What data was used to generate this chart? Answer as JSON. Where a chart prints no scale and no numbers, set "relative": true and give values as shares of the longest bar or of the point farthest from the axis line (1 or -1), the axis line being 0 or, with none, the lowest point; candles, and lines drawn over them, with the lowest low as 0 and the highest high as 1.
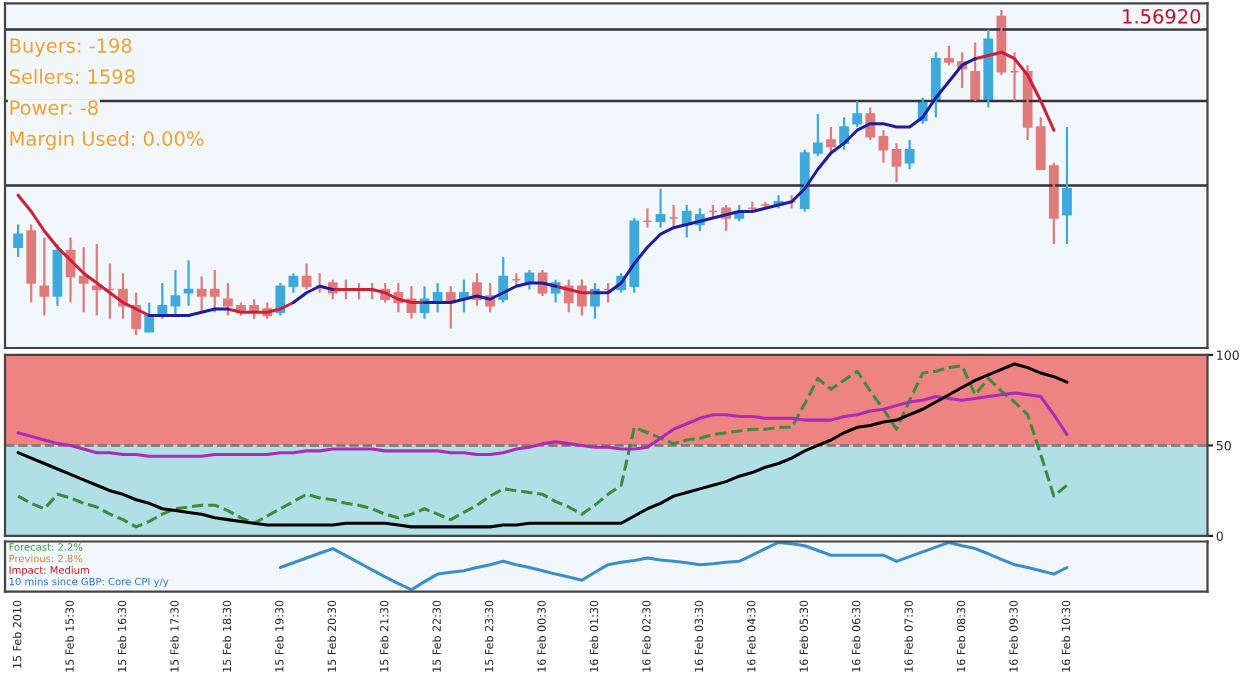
{
  "chart_data": [
    {
      "type": "candlestick",
      "relative": true,
      "tick_labels": false,
      "categories": [
        null,
        null,
        null,
        null,
        null,
        null,
        null,
        null,
        null,
        null,
        null,
        null,
        null,
        null,
        null,
        null,
        null,
        null,
        null,
        null,
        null,
        null,
        null,
        null,
        null,
        null,
        null,
        null,
        null,
        null,
        null,
        null,
        null,
        null,
        null,
        null,
        null,
        null,
        null,
        null,
        null,
        null,
        null,
        null,
        null,
        null,
        null,
        null,
        null,
        null,
        null,
        null,
        null,
        null,
        null,
        null,
        null,
        null,
        null,
        null,
        null,
        null,
        null,
        null,
        null,
        null,
        null,
        null,
        null,
        null,
        null,
        null,
        null,
        null,
        null,
        null,
        null,
        null,
        null,
        null,
        null
      ],
      "ohlc": [
        [
          0.27,
          0.34,
          0.24,
          0.31
        ],
        [
          0.32,
          0.34,
          0.1,
          0.16
        ],
        [
          0.15,
          0.3,
          0.06,
          0.12
        ],
        [
          0.12,
          0.28,
          0.09,
          0.26
        ],
        [
          0.26,
          0.3,
          0.1,
          0.18
        ],
        [
          0.18,
          0.27,
          0.07,
          0.16
        ],
        [
          0.15,
          0.28,
          0.06,
          0.14
        ],
        [
          0.14,
          0.22,
          0.05,
          0.14
        ],
        [
          0.14,
          0.19,
          0.05,
          0.09
        ],
        [
          0.09,
          0.13,
          0.0,
          0.02
        ],
        [
          0.01,
          0.1,
          0.01,
          0.06
        ],
        [
          0.06,
          0.16,
          0.05,
          0.09
        ],
        [
          0.09,
          0.2,
          0.06,
          0.12
        ],
        [
          0.13,
          0.23,
          0.09,
          0.14
        ],
        [
          0.14,
          0.18,
          0.07,
          0.12
        ],
        [
          0.14,
          0.2,
          0.07,
          0.12
        ],
        [
          0.11,
          0.16,
          0.06,
          0.09
        ],
        [
          0.09,
          0.1,
          0.06,
          0.07
        ],
        [
          0.09,
          0.11,
          0.05,
          0.07
        ],
        [
          0.08,
          0.1,
          0.05,
          0.06
        ],
        [
          0.07,
          0.16,
          0.06,
          0.15
        ],
        [
          0.15,
          0.19,
          0.13,
          0.18
        ],
        [
          0.18,
          0.22,
          0.14,
          0.15
        ],
        [
          0.15,
          0.19,
          0.13,
          0.15
        ],
        [
          0.16,
          0.17,
          0.11,
          0.13
        ],
        [
          0.14,
          0.17,
          0.11,
          0.14
        ],
        [
          0.14,
          0.16,
          0.11,
          0.14
        ],
        [
          0.14,
          0.16,
          0.11,
          0.14
        ],
        [
          0.14,
          0.16,
          0.1,
          0.11
        ],
        [
          0.13,
          0.16,
          0.07,
          0.1
        ],
        [
          0.11,
          0.15,
          0.05,
          0.07
        ],
        [
          0.07,
          0.15,
          0.05,
          0.11
        ],
        [
          0.1,
          0.16,
          0.07,
          0.13
        ],
        [
          0.13,
          0.15,
          0.02,
          0.1
        ],
        [
          0.11,
          0.17,
          0.07,
          0.13
        ],
        [
          0.16,
          0.19,
          0.09,
          0.11
        ],
        [
          0.12,
          0.16,
          0.07,
          0.09
        ],
        [
          0.11,
          0.24,
          0.1,
          0.18
        ],
        [
          0.17,
          0.19,
          0.15,
          0.17
        ],
        [
          0.16,
          0.2,
          0.14,
          0.19
        ],
        [
          0.19,
          0.2,
          0.12,
          0.13
        ],
        [
          0.13,
          0.17,
          0.1,
          0.16
        ],
        [
          0.15,
          0.17,
          0.07,
          0.1
        ],
        [
          0.15,
          0.17,
          0.06,
          0.09
        ],
        [
          0.09,
          0.16,
          0.05,
          0.14
        ],
        [
          0.14,
          0.16,
          0.1,
          0.14
        ],
        [
          0.14,
          0.19,
          0.13,
          0.18
        ],
        [
          0.15,
          0.36,
          0.13,
          0.35
        ],
        [
          0.35,
          0.39,
          0.33,
          0.35
        ],
        [
          0.35,
          0.45,
          0.33,
          0.37
        ],
        [
          0.36,
          0.4,
          0.33,
          0.36
        ],
        [
          0.34,
          0.4,
          0.3,
          0.38
        ],
        [
          0.34,
          0.39,
          0.32,
          0.37
        ],
        [
          0.38,
          0.4,
          0.36,
          0.38
        ],
        [
          0.39,
          0.4,
          0.32,
          0.36
        ],
        [
          0.36,
          0.4,
          0.35,
          0.38
        ],
        [
          0.39,
          0.41,
          0.38,
          0.39
        ],
        [
          0.4,
          0.41,
          0.39,
          0.4
        ],
        [
          0.4,
          0.43,
          0.39,
          0.41
        ],
        [
          0.41,
          0.43,
          0.39,
          0.41
        ],
        [
          0.39,
          0.57,
          0.38,
          0.56
        ],
        [
          0.56,
          0.68,
          0.55,
          0.59
        ],
        [
          0.6,
          0.64,
          0.56,
          0.58
        ],
        [
          0.59,
          0.67,
          0.57,
          0.64
        ],
        [
          0.65,
          0.72,
          0.64,
          0.68
        ],
        [
          0.68,
          0.7,
          0.6,
          0.61
        ],
        [
          0.61,
          0.63,
          0.53,
          0.57
        ],
        [
          0.57,
          0.59,
          0.47,
          0.52
        ],
        [
          0.53,
          0.6,
          0.51,
          0.57
        ],
        [
          0.66,
          0.73,
          0.65,
          0.72
        ],
        [
          0.72,
          0.87,
          0.67,
          0.85
        ],
        [
          0.85,
          0.89,
          0.83,
          0.84
        ],
        [
          0.84,
          0.87,
          0.76,
          0.82
        ],
        [
          0.81,
          0.9,
          0.72,
          0.72
        ],
        [
          0.72,
          0.94,
          0.7,
          0.91
        ],
        [
          0.98,
          1.0,
          0.8,
          0.81
        ],
        [
          0.81,
          0.87,
          0.72,
          0.81
        ],
        [
          0.81,
          0.83,
          0.6,
          0.64
        ],
        [
          0.64,
          0.67,
          0.51,
          0.51
        ],
        [
          0.52,
          0.53,
          0.28,
          0.36
        ],
        [
          0.37,
          0.64,
          0.28,
          0.45
        ]
      ],
      "colors": [
        "#3fa9dc",
        "#e07b7b",
        "#e07b7b",
        "#3fa9dc",
        "#e07b7b",
        "#e07b7b",
        "#e07b7b",
        "#e07b7b",
        "#e07b7b",
        "#e07b7b",
        "#3fa9dc",
        "#3fa9dc",
        "#3fa9dc",
        "#3fa9dc",
        "#e07b7b",
        "#e07b7b",
        "#e07b7b",
        "#e07b7b",
        "#e07b7b",
        "#e07b7b",
        "#3fa9dc",
        "#3fa9dc",
        "#e07b7b",
        "#e07b7b",
        "#e07b7b",
        "#e07b7b",
        "#e07b7b",
        "#e07b7b",
        "#e07b7b",
        "#e07b7b",
        "#e07b7b",
        "#3fa9dc",
        "#3fa9dc",
        "#e07b7b",
        "#3fa9dc",
        "#e07b7b",
        "#e07b7b",
        "#3fa9dc",
        "#e07b7b",
        "#3fa9dc",
        "#e07b7b",
        "#3fa9dc",
        "#e07b7b",
        "#e07b7b",
        "#3fa9dc",
        "#e07b7b",
        "#3fa9dc",
        "#3fa9dc",
        "#e07b7b",
        "#3fa9dc",
        "#e07b7b",
        "#3fa9dc",
        "#3fa9dc",
        "#e07b7b",
        "#e07b7b",
        "#3fa9dc",
        "#e07b7b",
        "#e07b7b",
        "#3fa9dc",
        "#e07b7b",
        "#3fa9dc",
        "#3fa9dc",
        "#e07b7b",
        "#3fa9dc",
        "#3fa9dc",
        "#e07b7b",
        "#e07b7b",
        "#e07b7b",
        "#3fa9dc",
        "#3fa9dc",
        "#3fa9dc",
        "#e07b7b",
        "#e07b7b",
        "#e07b7b",
        "#3fa9dc",
        "#e07b7b",
        "#e07b7b",
        "#e07b7b",
        "#e07b7b",
        "#e07b7b",
        "#3fa9dc"
      ],
      "series": [
        {
          "type": "line",
          "color": "#cc1f3a",
          "values": [
            0.43,
            0.38,
            0.32,
            0.27,
            0.23,
            0.19,
            0.16,
            0.13,
            0.1,
            0.08,
            0.06,
            null,
            null,
            null,
            null,
            null,
            0.08,
            0.07,
            0.07,
            0.07,
            0.08,
            0.1,
            null,
            null,
            0.14,
            0.14,
            0.14,
            0.14,
            0.13,
            0.11,
            0.1,
            0.1,
            null,
            null,
            null,
            null,
            null,
            null,
            null,
            null,
            null,
            0.15,
            0.14,
            0.13,
            0.13,
            null,
            null,
            null,
            null,
            null,
            null,
            null,
            null,
            null,
            null,
            null,
            null,
            null,
            null,
            null,
            null,
            null,
            null,
            null,
            null,
            null,
            null,
            null,
            null,
            null,
            null,
            null,
            null,
            0.85,
            0.86,
            0.87,
            0.85,
            0.8,
            0.72,
            0.63,
            null
          ]
        },
        {
          "type": "line",
          "color": "#1f1f9e",
          "values": [
            null,
            null,
            null,
            null,
            null,
            null,
            null,
            null,
            null,
            null,
            0.06,
            0.06,
            0.06,
            0.06,
            0.07,
            0.08,
            0.08,
            null,
            null,
            null,
            null,
            0.1,
            0.13,
            0.15,
            0.14,
            null,
            null,
            null,
            null,
            null,
            null,
            0.1,
            0.1,
            0.1,
            0.11,
            0.12,
            0.11,
            0.13,
            0.15,
            0.16,
            0.16,
            0.15,
            null,
            null,
            0.13,
            0.13,
            0.16,
            0.22,
            0.27,
            0.31,
            0.33,
            0.34,
            0.35,
            0.36,
            0.37,
            0.38,
            0.38,
            0.39,
            0.4,
            0.41,
            0.45,
            0.51,
            0.56,
            0.59,
            0.63,
            0.65,
            0.65,
            0.64,
            0.64,
            0.67,
            0.73,
            0.78,
            0.83,
            0.85,
            null,
            null,
            null,
            null,
            null,
            null,
            null
          ]
        }
      ],
      "ref_lines": [
        {
          "axis": "y",
          "value": 0.94,
          "color": "#333333"
        },
        {
          "axis": "y",
          "value": 0.72,
          "color": "#333333"
        },
        {
          "axis": "y",
          "value": 0.46,
          "color": "#333333"
        }
      ],
      "annotations": [
        "Buyers: -198",
        "Sellers: 1598",
        "Power: -8",
        "Margin Used: 0.00%",
        "1.56920"
      ]
    },
    {
      "type": "line",
      "tick_labels": "y",
      "ylim": [
        0,
        100
      ],
      "yticks": [
        0,
        50,
        100
      ],
      "categories": [
        null,
        null,
        null,
        null,
        null,
        null,
        null,
        null,
        null,
        null,
        null,
        null,
        null,
        null,
        null,
        null,
        null,
        null,
        null,
        null,
        null,
        null,
        null,
        null,
        null,
        null,
        null,
        null,
        null,
        null,
        null,
        null,
        null,
        null,
        null,
        null,
        null,
        null,
        null,
        null,
        null,
        null,
        null,
        null,
        null,
        null,
        null,
        null,
        null,
        null,
        null,
        null,
        null,
        null,
        null,
        null,
        null,
        null,
        null,
        null,
        null,
        null,
        null,
        null,
        null,
        null,
        null,
        null,
        null,
        null,
        null,
        null,
        null,
        null,
        null,
        null,
        null,
        null,
        null,
        null,
        null
      ],
      "bands": [
        {
          "axis": "y",
          "from": 50,
          "to": 100,
          "color": "#ee8482"
        },
        {
          "axis": "y",
          "from": 0,
          "to": 50,
          "color": "#b0e0e6"
        }
      ],
      "ref_lines": [
        {
          "axis": "y",
          "value": 50,
          "color": "#777777",
          "line_style": "dashed"
        }
      ],
      "series": [
        {
          "color": "#3c8c3c",
          "line_style": "dashed",
          "values": [
            22,
            18,
            15,
            23,
            21,
            18,
            16,
            12,
            9,
            5,
            8,
            12,
            15,
            16,
            17,
            17,
            14,
            10,
            7,
            11,
            15,
            19,
            23,
            21,
            20,
            18,
            17,
            15,
            12,
            10,
            12,
            15,
            12,
            9,
            13,
            17,
            22,
            26,
            25,
            24,
            23,
            19,
            16,
            12,
            17,
            23,
            28,
            60,
            57,
            54,
            51,
            53,
            54,
            56,
            57,
            58,
            59,
            59,
            60,
            60,
            73,
            87,
            81,
            86,
            91,
            80,
            70,
            59,
            75,
            90,
            91,
            93,
            94,
            78,
            87,
            80,
            74,
            67,
            45,
            22,
            28
          ]
        },
        {
          "color": "#b02ab8",
          "values": [
            57,
            55,
            53,
            51,
            50,
            48,
            46,
            46,
            45,
            45,
            44,
            44,
            44,
            44,
            44,
            45,
            45,
            45,
            45,
            45,
            46,
            46,
            47,
            47,
            48,
            48,
            48,
            48,
            47,
            47,
            47,
            47,
            47,
            46,
            46,
            45,
            45,
            46,
            48,
            49,
            51,
            52,
            51,
            50,
            49,
            49,
            48,
            48,
            49,
            54,
            59,
            62,
            65,
            67,
            67,
            66,
            66,
            65,
            65,
            65,
            64,
            64,
            64,
            66,
            67,
            69,
            70,
            72,
            74,
            75,
            77,
            76,
            75,
            76,
            77,
            78,
            79,
            78,
            77,
            67,
            56
          ]
        },
        {
          "color": "#000000",
          "values": [
            46,
            43,
            40,
            37,
            34,
            31,
            28,
            25,
            23,
            20,
            18,
            15,
            14,
            13,
            12,
            10,
            9,
            8,
            7,
            6,
            6,
            6,
            6,
            6,
            6,
            7,
            7,
            7,
            7,
            6,
            5,
            5,
            5,
            5,
            5,
            5,
            5,
            6,
            6,
            7,
            7,
            7,
            7,
            7,
            7,
            7,
            7,
            11,
            15,
            18,
            22,
            24,
            26,
            28,
            30,
            33,
            35,
            38,
            40,
            43,
            47,
            50,
            53,
            57,
            60,
            61,
            63,
            64,
            67,
            70,
            74,
            78,
            82,
            86,
            89,
            92,
            95,
            93,
            90,
            88,
            85
          ]
        }
      ]
    },
    {
      "type": "line",
      "relative": true,
      "tick_labels": "x",
      "categories": [
        "15 Feb 2010",
        null,
        null,
        null,
        "15 Feb 15:30",
        null,
        null,
        null,
        "15 Feb 16:30",
        null,
        null,
        null,
        "15 Feb 17:30",
        null,
        null,
        null,
        "15 Feb 18:30",
        null,
        null,
        null,
        "15 Feb 19:30",
        null,
        null,
        null,
        "15 Feb 20:30",
        null,
        null,
        null,
        "15 Feb 21:30",
        null,
        null,
        null,
        "15 Feb 22:30",
        null,
        null,
        null,
        "15 Feb 23:30",
        null,
        null,
        null,
        "16 Feb 00:30",
        null,
        null,
        null,
        "16 Feb 01:30",
        null,
        null,
        null,
        "16 Feb 02:30",
        null,
        null,
        null,
        "16 Feb 03:30",
        null,
        null,
        null,
        "16 Feb 04:30",
        null,
        null,
        null,
        "16 Feb 05:30",
        null,
        null,
        null,
        "16 Feb 06:30",
        null,
        null,
        null,
        "16 Feb 07:30",
        null,
        null,
        null,
        "16 Feb 08:30",
        null,
        null,
        null,
        "16 Feb 09:30",
        null,
        null,
        null,
        "16 Feb 10:30"
      ],
      "series": [
        {
          "color": "#3b8fc8",
          "values": [
            null,
            null,
            null,
            null,
            null,
            null,
            null,
            null,
            null,
            null,
            null,
            null,
            null,
            null,
            null,
            null,
            null,
            null,
            null,
            null,
            0.47,
            0.57,
            0.67,
            0.77,
            0.87,
            0.72,
            0.57,
            0.42,
            0.27,
            0.13,
            0,
            0.17,
            0.33,
            0.37,
            0.4,
            0.47,
            0.53,
            0.6,
            0.53,
            0.47,
            0.4,
            0.33,
            0.27,
            0.2,
            0.37,
            0.53,
            0.58,
            0.62,
            0.67,
            0.63,
            0.6,
            0.57,
            0.53,
            0.55,
            0.58,
            0.6,
            0.73,
            0.87,
            1,
            0.97,
            0.93,
            0.83,
            0.73,
            0.73,
            0.73,
            0.73,
            0.73,
            0.6,
            0.7,
            0.8,
            0.9,
            1,
            0.93,
            0.87,
            0.76,
            0.64,
            0.53,
            0.47,
            0.4,
            0.33,
            0.47
          ]
        }
      ],
      "annotations": [
        "Forecast: 2.2%",
        "Previous: 2.8%",
        "Impact: Medium",
        "10 mins since GBP: Core CPI y/y"
      ]
    }
  ]
}
